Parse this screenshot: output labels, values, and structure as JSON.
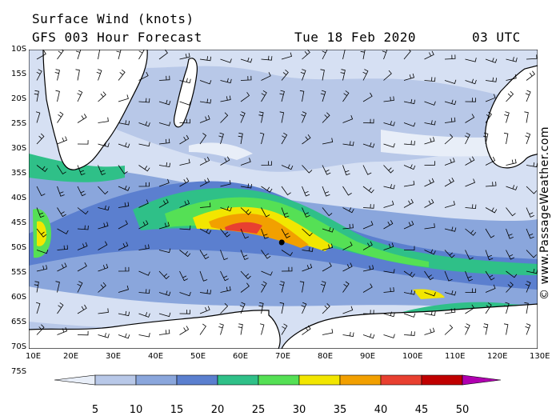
{
  "header": {
    "title": "Surface Wind (knots)",
    "forecast": "GFS 003 Hour Forecast",
    "date": "Tue 18 Feb 2020",
    "time": "03 UTC"
  },
  "credit": "© www.PassageWeather.com",
  "lat_labels": [
    "10S",
    "15S",
    "20S",
    "25S",
    "30S",
    "35S",
    "40S",
    "45S",
    "50S",
    "55S",
    "60S",
    "65S",
    "70S",
    "75S"
  ],
  "lon_labels": [
    "10E",
    "20E",
    "30E",
    "40E",
    "50E",
    "60E",
    "70E",
    "80E",
    "90E",
    "100E",
    "110E",
    "120E",
    "130E"
  ],
  "scale": {
    "labels": [
      "5",
      "10",
      "15",
      "20",
      "25",
      "30",
      "35",
      "40",
      "45",
      "50"
    ],
    "colors": [
      "#e8eef8",
      "#b8c8e8",
      "#8aa6dc",
      "#5b7fcf",
      "#2fc088",
      "#55e055",
      "#f2e600",
      "#f2a000",
      "#e84030",
      "#c00000",
      "#b000b0"
    ]
  },
  "map_colors": {
    "ocean_calm": "#e8eef8",
    "land": "#ffffff",
    "coast": "#000000"
  }
}
